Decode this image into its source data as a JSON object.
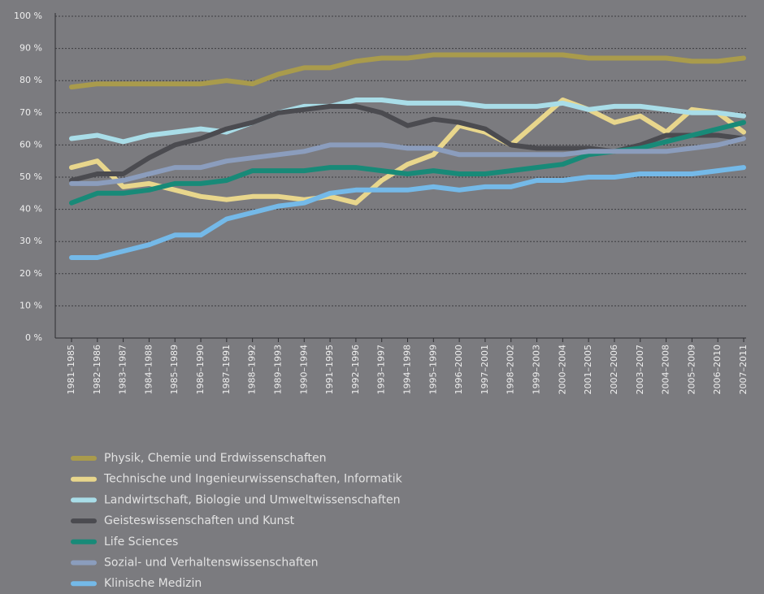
{
  "chart_data": {
    "type": "line",
    "categories": [
      "1981–1985",
      "1982–1986",
      "1983–1987",
      "1984–1988",
      "1985–1989",
      "1986–1990",
      "1987–1991",
      "1988–1992",
      "1989–1993",
      "1990–1994",
      "1991–1995",
      "1992–1996",
      "1993–1997",
      "1994–1998",
      "1995–1999",
      "1996–2000",
      "1997–2001",
      "1998–2002",
      "1999–2003",
      "2000–2004",
      "2001–2005",
      "2002–2006",
      "2003–2007",
      "2004–2008",
      "2005–2009",
      "2006–2010",
      "2007–2011"
    ],
    "series": [
      {
        "name": "Physik, Chemie und Erdwissenschaften",
        "color": "#a99b4c",
        "values": [
          78,
          79,
          79,
          79,
          79,
          79,
          80,
          79,
          82,
          84,
          84,
          86,
          87,
          87,
          88,
          88,
          88,
          88,
          88,
          88,
          87,
          87,
          87,
          87,
          86,
          86,
          87
        ]
      },
      {
        "name": "Technische und Ingenieurwissenschaften, Informatik",
        "color": "#e8d68c",
        "values": [
          53,
          55,
          47,
          48,
          46,
          44,
          43,
          44,
          44,
          43,
          44,
          42,
          49,
          54,
          57,
          66,
          64,
          60,
          67,
          74,
          71,
          67,
          69,
          64,
          71,
          70,
          64
        ]
      },
      {
        "name": "Landwirtschaft, Biologie und Umweltwissenschaften",
        "color": "#a9dde8",
        "values": [
          62,
          63,
          61,
          63,
          64,
          65,
          64,
          67,
          70,
          72,
          72,
          74,
          74,
          73,
          73,
          73,
          72,
          72,
          72,
          73,
          71,
          72,
          72,
          71,
          70,
          70,
          69
        ]
      },
      {
        "name": "Geisteswissenschaften und Kunst",
        "color": "#4b4b50",
        "values": [
          49,
          51,
          51,
          56,
          60,
          62,
          65,
          67,
          70,
          71,
          72,
          72,
          70,
          66,
          68,
          67,
          65,
          60,
          59,
          59,
          59,
          58,
          60,
          63,
          63,
          63,
          62
        ]
      },
      {
        "name": "Life Sciences",
        "color": "#188a78",
        "values": [
          42,
          45,
          45,
          46,
          48,
          48,
          49,
          52,
          52,
          52,
          53,
          53,
          52,
          51,
          52,
          51,
          51,
          52,
          53,
          54,
          57,
          58,
          59,
          61,
          63,
          65,
          67
        ]
      },
      {
        "name": "Sozial- und Verhaltenswissenschaften",
        "color": "#8b9dbd",
        "values": [
          48,
          48,
          49,
          51,
          53,
          53,
          55,
          56,
          57,
          58,
          60,
          60,
          60,
          59,
          59,
          57,
          57,
          57,
          57,
          57,
          58,
          58,
          58,
          58,
          59,
          60,
          62
        ]
      },
      {
        "name": "Klinische Medizin",
        "color": "#74b9e8",
        "values": [
          25,
          25,
          27,
          29,
          32,
          32,
          37,
          39,
          41,
          42,
          45,
          46,
          46,
          46,
          47,
          46,
          47,
          47,
          49,
          49,
          50,
          50,
          51,
          51,
          51,
          52,
          53
        ]
      }
    ],
    "ylim": [
      0,
      100
    ],
    "yticks": [
      {
        "value": 0,
        "label": "0 %"
      },
      {
        "value": 10,
        "label": "10 %"
      },
      {
        "value": 20,
        "label": "20 %"
      },
      {
        "value": 30,
        "label": "30 %"
      },
      {
        "value": 40,
        "label": "40 %"
      },
      {
        "value": 50,
        "label": "50 %"
      },
      {
        "value": 60,
        "label": "60 %"
      },
      {
        "value": 70,
        "label": "70 %"
      },
      {
        "value": 80,
        "label": "80 %"
      },
      {
        "value": 90,
        "label": "90 %"
      },
      {
        "value": 100,
        "label": "100 %"
      }
    ],
    "grid": true
  }
}
